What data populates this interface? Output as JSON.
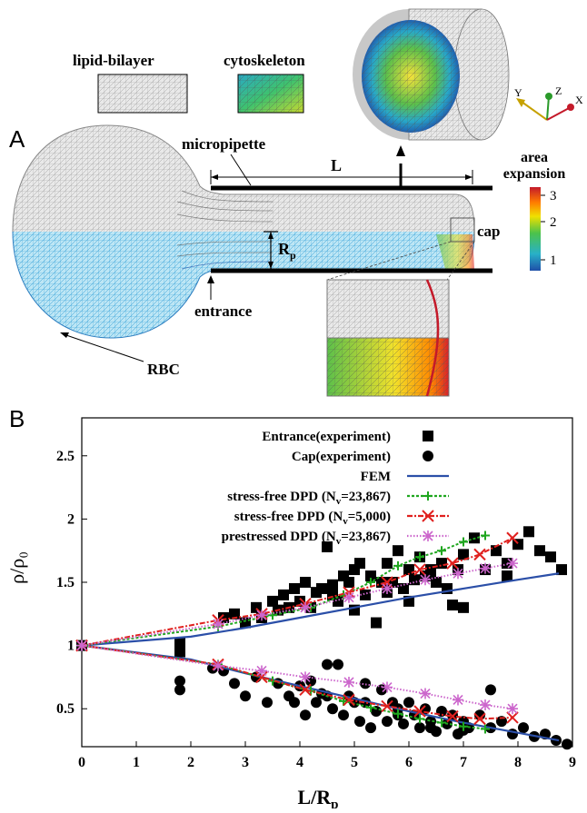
{
  "panel_a": {
    "letter": "A",
    "labels": {
      "lipid_bilayer": "lipid-bilayer",
      "cytoskeleton": "cytoskeleton",
      "micropipette": "micropipette",
      "L": "L",
      "Rp_main": "R",
      "Rp_sub": "p",
      "cap": "cap",
      "entrance": "entrance",
      "rbc": "RBC",
      "colorbar_title_1": "area",
      "colorbar_title_2": "expansion",
      "axis_y": "Y",
      "axis_z": "Z",
      "axis_x": "X"
    },
    "colorbar_ticks": [
      "3",
      "2",
      "1"
    ],
    "colors": {
      "lipid": "#9a9a9a",
      "membrane_blue": "#3aa6d8",
      "colorbar": [
        "#c41a2a",
        "#ff7a00",
        "#f0e000",
        "#4cc34a",
        "#28b0c8",
        "#1f4fa8"
      ]
    }
  },
  "panel_b": {
    "letter": "B",
    "chart_data": {
      "type": "scatter",
      "xlabel_main": "L/R",
      "xlabel_sub": "p",
      "ylabel": "ρ/ρ₀",
      "xlim": [
        0,
        9
      ],
      "ylim": [
        0.2,
        2.8
      ],
      "x_ticks": [
        "0",
        "1",
        "2",
        "3",
        "4",
        "5",
        "6",
        "7",
        "8",
        "9"
      ],
      "y_ticks": [
        {
          "v": 0.5,
          "label": "0.5"
        },
        {
          "v": 1.0,
          "label": "1"
        },
        {
          "v": 1.5,
          "label": "1.5"
        },
        {
          "v": 2.0,
          "label": "2"
        },
        {
          "v": 2.5,
          "label": "2.5"
        }
      ],
      "legend": [
        {
          "label": "Entrance(experiment)",
          "marker": "square",
          "color": "#000000"
        },
        {
          "label": "Cap(experiment)",
          "marker": "circle",
          "color": "#000000"
        },
        {
          "label": "FEM",
          "marker": "line",
          "color": "#2b4fa8"
        },
        {
          "label": "stress-free DPD (N",
          "sub": "v",
          "tail": "=23,867)",
          "marker": "plus",
          "color": "#1fa61f"
        },
        {
          "label": "stress-free DPD (N",
          "sub": "v",
          "tail": "=5,000)",
          "marker": "cross",
          "color": "#e0201e"
        },
        {
          "label": "prestressed DPD (N",
          "sub": "v",
          "tail": "=23,867)",
          "marker": "star",
          "color": "#cc66cc"
        }
      ],
      "series": [
        {
          "name": "Entrance(experiment)",
          "marker": "square",
          "color": "#000000",
          "x": [
            0,
            1.8,
            1.8,
            2.6,
            2.8,
            3.0,
            3.2,
            3.3,
            3.5,
            3.6,
            3.7,
            3.8,
            3.9,
            4.0,
            4.1,
            4.2,
            4.3,
            4.4,
            4.5,
            4.6,
            4.7,
            4.8,
            4.9,
            5.0,
            5.1,
            5.2,
            5.3,
            5.4,
            5.5,
            5.6,
            5.7,
            5.8,
            5.9,
            6.0,
            6.1,
            6.2,
            6.3,
            6.4,
            6.5,
            6.6,
            6.7,
            6.8,
            6.9,
            7.0,
            7.2,
            7.4,
            7.6,
            7.8,
            8.0,
            8.2,
            8.4,
            8.6,
            8.8,
            4.6,
            5.0,
            5.6,
            6.0,
            6.4,
            7.0,
            7.8
          ],
          "y": [
            1.0,
            0.95,
            1.02,
            1.22,
            1.25,
            1.18,
            1.3,
            1.22,
            1.35,
            1.28,
            1.4,
            1.3,
            1.45,
            1.35,
            1.5,
            1.3,
            1.42,
            1.45,
            1.78,
            1.48,
            1.35,
            1.55,
            1.5,
            1.6,
            1.65,
            1.4,
            1.55,
            1.18,
            1.5,
            1.65,
            1.5,
            1.75,
            1.45,
            1.6,
            1.52,
            1.7,
            1.55,
            1.6,
            1.5,
            1.65,
            1.45,
            1.32,
            1.6,
            1.72,
            1.85,
            1.6,
            1.75,
            1.65,
            1.8,
            1.9,
            1.75,
            1.7,
            1.6,
            1.4,
            1.28,
            1.42,
            1.35,
            1.58,
            1.3,
            1.55
          ]
        },
        {
          "name": "Cap(experiment)",
          "marker": "circle",
          "color": "#000000",
          "x": [
            0,
            1.8,
            1.8,
            2.4,
            2.6,
            2.8,
            3.0,
            3.2,
            3.4,
            3.6,
            3.8,
            3.9,
            4.0,
            4.1,
            4.2,
            4.3,
            4.4,
            4.5,
            4.6,
            4.7,
            4.8,
            4.9,
            5.0,
            5.1,
            5.2,
            5.3,
            5.4,
            5.5,
            5.6,
            5.7,
            5.8,
            5.9,
            6.0,
            6.1,
            6.2,
            6.3,
            6.4,
            6.5,
            6.6,
            6.7,
            6.8,
            6.9,
            7.0,
            7.1,
            7.3,
            7.5,
            7.7,
            7.9,
            8.1,
            8.3,
            8.5,
            8.7,
            8.9,
            4.5,
            5.2,
            5.8,
            6.4,
            7.0,
            7.5
          ],
          "y": [
            1.0,
            0.72,
            0.65,
            0.82,
            0.8,
            0.7,
            0.6,
            0.75,
            0.55,
            0.7,
            0.6,
            0.55,
            0.68,
            0.45,
            0.72,
            0.55,
            0.62,
            0.85,
            0.5,
            0.85,
            0.45,
            0.6,
            0.55,
            0.4,
            0.55,
            0.35,
            0.48,
            0.65,
            0.4,
            0.55,
            0.45,
            0.38,
            0.55,
            0.45,
            0.35,
            0.5,
            0.4,
            0.32,
            0.48,
            0.38,
            0.45,
            0.3,
            0.4,
            0.35,
            0.45,
            0.35,
            0.4,
            0.3,
            0.35,
            0.28,
            0.3,
            0.25,
            0.22,
            0.6,
            0.7,
            0.5,
            0.35,
            0.33,
            0.65
          ]
        },
        {
          "name": "FEM",
          "marker": "line",
          "color": "#2b4fa8",
          "x": [
            0,
            2.0,
            3.0,
            4.0,
            5.0,
            6.0,
            7.0,
            8.0,
            8.75
          ],
          "y": [
            1.0,
            1.07,
            1.14,
            1.22,
            1.3,
            1.38,
            1.45,
            1.52,
            1.57
          ]
        },
        {
          "name": "FEM",
          "marker": "line",
          "color": "#2b4fa8",
          "x": [
            0,
            2.0,
            3.0,
            4.0,
            5.0,
            6.0,
            7.0,
            8.0,
            8.75
          ],
          "y": [
            1.0,
            0.89,
            0.78,
            0.68,
            0.58,
            0.48,
            0.39,
            0.31,
            0.25
          ]
        },
        {
          "name": "stress-free DPD (Nv=23,867)",
          "marker": "plus",
          "color": "#1fa61f",
          "x": [
            0,
            2.5,
            3.5,
            4.2,
            4.8,
            5.3,
            5.8,
            6.2,
            6.6,
            7.0,
            7.4
          ],
          "y": [
            1.0,
            1.15,
            1.24,
            1.3,
            1.4,
            1.5,
            1.63,
            1.7,
            1.75,
            1.82,
            1.87
          ]
        },
        {
          "name": "stress-free DPD (Nv=23,867)",
          "marker": "plus",
          "color": "#1fa61f",
          "x": [
            0,
            2.5,
            3.5,
            4.2,
            4.8,
            5.3,
            5.8,
            6.2,
            6.6,
            7.0,
            7.4
          ],
          "y": [
            1.0,
            0.85,
            0.72,
            0.64,
            0.56,
            0.51,
            0.46,
            0.42,
            0.39,
            0.36,
            0.34
          ]
        },
        {
          "name": "stress-free DPD (Nv=5,000)",
          "marker": "cross",
          "color": "#e0201e",
          "x": [
            0,
            2.5,
            3.3,
            4.1,
            4.9,
            5.6,
            6.2,
            6.8,
            7.3,
            7.9
          ],
          "y": [
            1.0,
            1.2,
            1.25,
            1.33,
            1.42,
            1.5,
            1.6,
            1.65,
            1.72,
            1.85
          ]
        },
        {
          "name": "stress-free DPD (Nv=5,000)",
          "marker": "cross",
          "color": "#e0201e",
          "x": [
            0,
            2.5,
            3.3,
            4.1,
            4.9,
            5.6,
            6.2,
            6.8,
            7.3,
            7.9
          ],
          "y": [
            1.0,
            0.85,
            0.75,
            0.65,
            0.57,
            0.52,
            0.48,
            0.44,
            0.42,
            0.43
          ]
        },
        {
          "name": "prestressed DPD (Nv=23,867)",
          "marker": "star",
          "color": "#cc66cc",
          "x": [
            0,
            2.5,
            3.3,
            4.1,
            4.9,
            5.6,
            6.3,
            6.9,
            7.4,
            7.9
          ],
          "y": [
            1.0,
            1.17,
            1.24,
            1.3,
            1.38,
            1.45,
            1.52,
            1.57,
            1.61,
            1.65
          ]
        },
        {
          "name": "prestressed DPD (Nv=23,867)",
          "marker": "star",
          "color": "#cc66cc",
          "x": [
            0,
            2.5,
            3.3,
            4.1,
            4.9,
            5.6,
            6.3,
            6.9,
            7.4,
            7.9
          ],
          "y": [
            1.0,
            0.84,
            0.8,
            0.75,
            0.71,
            0.67,
            0.62,
            0.57,
            0.53,
            0.5
          ]
        }
      ]
    }
  }
}
